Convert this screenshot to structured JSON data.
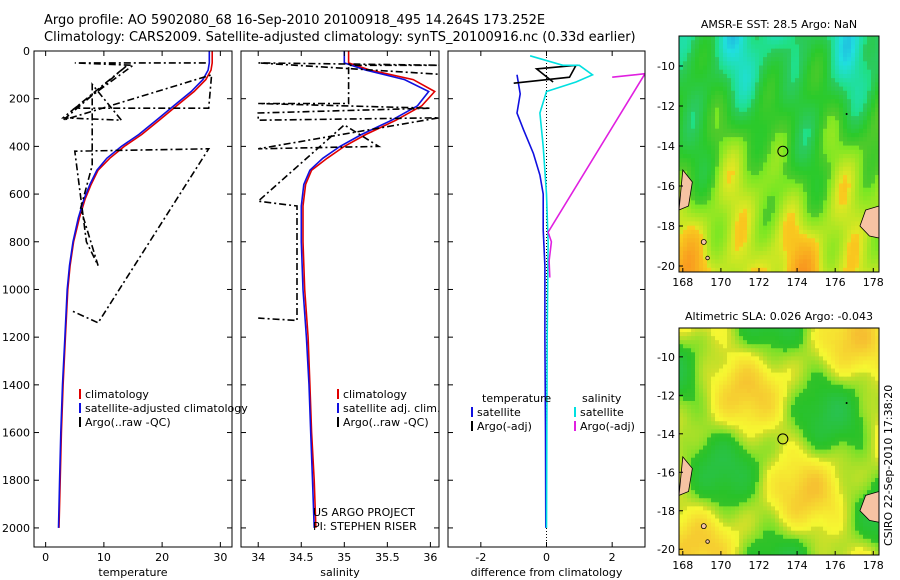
{
  "header": {
    "line1": "Argo profile: AO 5902080_68 16-Sep-2010 20100918_495 14.264S 173.252E",
    "line2": "Climatology: CARS2009. Satellite-adjusted climatology: synTS_20100916.nc (0.33d earlier)"
  },
  "side_label": "CSIRO 22-Sep-2010 17:38:20",
  "project": {
    "line1": "US ARGO PROJECT",
    "line2": "PI: STEPHEN RISER"
  },
  "colors": {
    "climatology": "#e00000",
    "satellite": "#1010e0",
    "argo": "#000000",
    "sal_satellite": "#00e0e0",
    "sal_argo": "#e020e0",
    "marker": "#000000"
  },
  "chart_data": [
    {
      "id": "temperature",
      "type": "line",
      "xlabel": "temperature",
      "ylabel": "",
      "xlim": [
        -2,
        32
      ],
      "ylim": [
        2080,
        0
      ],
      "xticks": [
        0,
        10,
        20,
        30
      ],
      "yticks": [
        0,
        200,
        400,
        600,
        800,
        1000,
        1200,
        1400,
        1600,
        1800,
        2000
      ],
      "legend": [
        "climatology",
        "satellite-adjusted climatology",
        "Argo(..raw -QC)"
      ],
      "series": [
        {
          "name": "climatology",
          "color": "#e00000",
          "style": "solid",
          "points": [
            [
              28.6,
              0
            ],
            [
              28.6,
              50
            ],
            [
              28.4,
              80
            ],
            [
              27.5,
              120
            ],
            [
              25.5,
              170
            ],
            [
              22.5,
              230
            ],
            [
              19.5,
              290
            ],
            [
              16.5,
              350
            ],
            [
              13.5,
              400
            ],
            [
              11,
              450
            ],
            [
              9,
              500
            ],
            [
              7.8,
              560
            ],
            [
              6.8,
              620
            ],
            [
              5.8,
              700
            ],
            [
              4.8,
              800
            ],
            [
              4.2,
              900
            ],
            [
              3.8,
              1000
            ],
            [
              3.4,
              1200
            ],
            [
              3,
              1400
            ],
            [
              2.7,
              1600
            ],
            [
              2.5,
              1800
            ],
            [
              2.3,
              2000
            ]
          ]
        },
        {
          "name": "satellite",
          "color": "#1010e0",
          "style": "solid",
          "points": [
            [
              28.1,
              0
            ],
            [
              28.1,
              50
            ],
            [
              27.9,
              80
            ],
            [
              27.0,
              120
            ],
            [
              25.0,
              170
            ],
            [
              22.0,
              230
            ],
            [
              19.0,
              290
            ],
            [
              16.0,
              350
            ],
            [
              13.0,
              400
            ],
            [
              10.5,
              450
            ],
            [
              8.8,
              500
            ],
            [
              7.6,
              560
            ],
            [
              6.6,
              620
            ],
            [
              5.6,
              700
            ],
            [
              4.7,
              800
            ],
            [
              4.1,
              900
            ],
            [
              3.7,
              1000
            ],
            [
              3.3,
              1200
            ],
            [
              2.9,
              1400
            ],
            [
              2.6,
              1600
            ],
            [
              2.4,
              1800
            ],
            [
              2.2,
              2000
            ]
          ]
        },
        {
          "name": "Argo",
          "color": "#000000",
          "style": "dashdot",
          "points": [
            [
              27.5,
              50
            ],
            [
              5,
              50
            ],
            [
              15,
              60
            ],
            [
              5,
              240
            ],
            [
              28,
              240
            ],
            [
              28.5,
              100
            ],
            [
              3,
              290
            ],
            [
              14,
              60
            ],
            [
              3,
              280
            ],
            [
              13,
              290
            ],
            [
              8,
              140
            ],
            [
              8,
              480
            ],
            [
              6,
              660
            ],
            [
              9,
              900
            ],
            [
              7,
              800
            ],
            [
              5,
              420
            ],
            [
              28,
              410
            ],
            [
              9,
              1140
            ],
            [
              4.5,
              1090
            ]
          ]
        }
      ]
    },
    {
      "id": "salinity",
      "type": "line",
      "xlabel": "salinity",
      "ylabel": "",
      "xlim": [
        33.8,
        36.1
      ],
      "ylim": [
        2080,
        0
      ],
      "xticks": [
        34,
        34.5,
        35,
        35.5,
        36
      ],
      "xtick_labels": [
        "34",
        "34.5",
        "35",
        "35.5",
        "36"
      ],
      "legend": [
        "climatology",
        "satellite adj. clim.",
        "Argo(..raw -QC)"
      ],
      "series": [
        {
          "name": "climatology",
          "color": "#e00000",
          "style": "solid",
          "points": [
            [
              35.05,
              0
            ],
            [
              35.05,
              50
            ],
            [
              35.3,
              80
            ],
            [
              35.8,
              120
            ],
            [
              36.05,
              170
            ],
            [
              35.9,
              230
            ],
            [
              35.6,
              290
            ],
            [
              35.25,
              350
            ],
            [
              35.0,
              400
            ],
            [
              34.8,
              450
            ],
            [
              34.62,
              500
            ],
            [
              34.55,
              560
            ],
            [
              34.52,
              650
            ],
            [
              34.52,
              800
            ],
            [
              34.54,
              1000
            ],
            [
              34.58,
              1200
            ],
            [
              34.6,
              1400
            ],
            [
              34.62,
              1600
            ],
            [
              34.65,
              1800
            ],
            [
              34.67,
              2000
            ]
          ]
        },
        {
          "name": "satellite",
          "color": "#1010e0",
          "style": "solid",
          "points": [
            [
              35.0,
              0
            ],
            [
              35.0,
              50
            ],
            [
              35.25,
              80
            ],
            [
              35.7,
              120
            ],
            [
              35.98,
              170
            ],
            [
              35.85,
              230
            ],
            [
              35.55,
              290
            ],
            [
              35.2,
              350
            ],
            [
              34.95,
              400
            ],
            [
              34.75,
              450
            ],
            [
              34.6,
              500
            ],
            [
              34.53,
              560
            ],
            [
              34.5,
              650
            ],
            [
              34.5,
              800
            ],
            [
              34.52,
              1000
            ],
            [
              34.56,
              1200
            ],
            [
              34.59,
              1400
            ],
            [
              34.61,
              1600
            ],
            [
              34.63,
              1800
            ],
            [
              34.65,
              2000
            ]
          ]
        },
        {
          "name": "Argo",
          "color": "#000000",
          "style": "dashdot",
          "points": [
            [
              36.2,
              100
            ],
            [
              34.0,
              50
            ],
            [
              36.2,
              60
            ],
            [
              35.05,
              60
            ],
            [
              35.05,
              220
            ],
            [
              34.0,
              220
            ],
            [
              36.0,
              240
            ],
            [
              34.0,
              260
            ],
            [
              34.0,
              290
            ],
            [
              36.1,
              280
            ],
            [
              34.0,
              410
            ],
            [
              35.4,
              400
            ],
            [
              35.0,
              310
            ],
            [
              34.0,
              630
            ],
            [
              34.45,
              650
            ],
            [
              34.45,
              1130
            ],
            [
              34.0,
              1120
            ]
          ]
        }
      ]
    },
    {
      "id": "difference",
      "type": "line",
      "xlabel": "difference from climatology",
      "ylabel": "",
      "xlim": [
        -3,
        3
      ],
      "ylim": [
        2080,
        0
      ],
      "xticks": [
        -2,
        0,
        2
      ],
      "legend": {
        "temperature_title": "temperature",
        "salinity_title": "salinity",
        "satellite": "satellite",
        "argo": "Argo(-adj)"
      },
      "series": [
        {
          "name": "temperature satellite",
          "color": "#1010e0",
          "style": "solid",
          "points": [
            [
              -0.9,
              100
            ],
            [
              -0.8,
              180
            ],
            [
              -0.9,
              260
            ],
            [
              -0.7,
              330
            ],
            [
              -0.4,
              430
            ],
            [
              -0.2,
              520
            ],
            [
              -0.1,
              600
            ],
            [
              -0.1,
              750
            ],
            [
              -0.05,
              900
            ],
            [
              -0.05,
              1200
            ],
            [
              -0.03,
              1600
            ],
            [
              -0.02,
              2000
            ]
          ]
        },
        {
          "name": "temperature Argo",
          "color": "#000000",
          "style": "solid",
          "points": [
            [
              -1.0,
              135
            ],
            [
              0.7,
              110
            ],
            [
              0.9,
              60
            ],
            [
              -0.3,
              75
            ],
            [
              0.2,
              130
            ]
          ]
        },
        {
          "name": "salinity satellite",
          "color": "#00e0e0",
          "style": "solid",
          "points": [
            [
              -0.5,
              20
            ],
            [
              0.5,
              60
            ],
            [
              1.0,
              60
            ],
            [
              1.4,
              100
            ],
            [
              0.9,
              130
            ],
            [
              0.0,
              170
            ],
            [
              -0.2,
              260
            ],
            [
              -0.1,
              400
            ],
            [
              0.0,
              600
            ],
            [
              0.05,
              800
            ],
            [
              0.02,
              1200
            ],
            [
              0.01,
              1600
            ],
            [
              0.0,
              2000
            ]
          ]
        },
        {
          "name": "salinity Argo",
          "color": "#e020e0",
          "style": "solid",
          "points": [
            [
              2.0,
              110
            ],
            [
              3.0,
              95
            ],
            [
              0.05,
              760
            ],
            [
              0.15,
              800
            ],
            [
              0.08,
              880
            ],
            [
              0.1,
              950
            ]
          ]
        }
      ]
    },
    {
      "id": "sst_map",
      "type": "heatmap",
      "title": "AMSR-E SST: 28.5 Argo: NaN",
      "xlim": [
        167.8,
        178.3
      ],
      "ylim": [
        -20.3,
        -8.5
      ],
      "xticks": [
        168,
        170,
        172,
        174,
        176,
        178
      ],
      "yticks": [
        -10,
        -12,
        -14,
        -16,
        -18,
        -20
      ],
      "marker": [
        173.252,
        -14.264
      ]
    },
    {
      "id": "sla_map",
      "type": "heatmap",
      "title": "Altimetric SLA: 0.026 Argo: -0.043",
      "xlim": [
        167.8,
        178.3
      ],
      "ylim": [
        -20.3,
        -8.5
      ],
      "xticks": [
        168,
        170,
        172,
        174,
        176,
        178
      ],
      "yticks": [
        -10,
        -12,
        -14,
        -16,
        -18,
        -20
      ],
      "marker": [
        173.252,
        -14.264
      ]
    }
  ]
}
